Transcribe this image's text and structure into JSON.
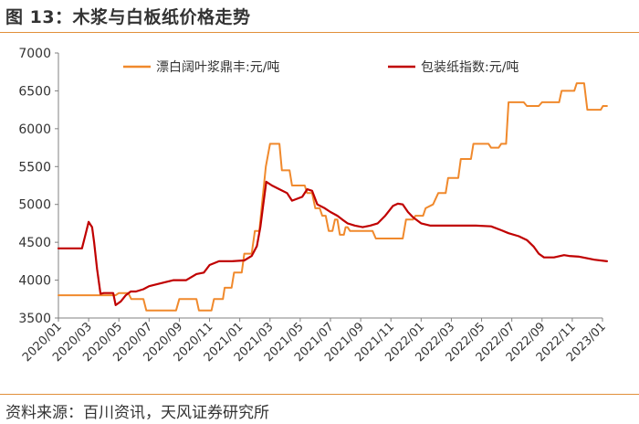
{
  "figure_title": "图 13：木浆与白板纸价格走势",
  "source_note": "资料来源：百川资讯，天风证券研究所",
  "colors": {
    "pulp": "#f0892c",
    "board": "#c00000",
    "accent_rule": "#e1903a",
    "axis": "#808080"
  },
  "chart_data": {
    "type": "line",
    "title": "",
    "xlabel": "",
    "ylabel": "",
    "ylim": [
      3500,
      7000
    ],
    "yticks": [
      3500,
      4000,
      4500,
      5000,
      5500,
      6000,
      6500,
      7000
    ],
    "xrange": [
      "2020-01",
      "2023-01"
    ],
    "xtick_labels": [
      "2020/01",
      "2020/03",
      "2020/05",
      "2020/07",
      "2020/09",
      "2020/11",
      "2021/01",
      "2021/03",
      "2021/05",
      "2021/07",
      "2021/09",
      "2021/11",
      "2022/01",
      "2022/03",
      "2022/05",
      "2022/07",
      "2022/09",
      "2022/11",
      "2023/01"
    ],
    "grid": false,
    "legend_position": "top",
    "series": [
      {
        "name": "漂白阔叶浆鼎丰:元/吨",
        "color": "#f0892c",
        "points": [
          [
            "2020-01-01",
            3800
          ],
          [
            "2020-04-25",
            3800
          ],
          [
            "2020-05-01",
            3830
          ],
          [
            "2020-05-20",
            3830
          ],
          [
            "2020-05-26",
            3750
          ],
          [
            "2020-06-20",
            3750
          ],
          [
            "2020-06-26",
            3600
          ],
          [
            "2020-08-25",
            3600
          ],
          [
            "2020-09-01",
            3750
          ],
          [
            "2020-10-05",
            3750
          ],
          [
            "2020-10-10",
            3600
          ],
          [
            "2020-11-05",
            3600
          ],
          [
            "2020-11-10",
            3750
          ],
          [
            "2020-11-28",
            3750
          ],
          [
            "2020-12-01",
            3900
          ],
          [
            "2020-12-15",
            3900
          ],
          [
            "2020-12-20",
            4100
          ],
          [
            "2021-01-05",
            4100
          ],
          [
            "2021-01-10",
            4350
          ],
          [
            "2021-01-25",
            4350
          ],
          [
            "2021-02-01",
            4650
          ],
          [
            "2021-02-10",
            4650
          ],
          [
            "2021-02-16",
            5050
          ],
          [
            "2021-02-23",
            5500
          ],
          [
            "2021-03-01",
            5800
          ],
          [
            "2021-03-20",
            5800
          ],
          [
            "2021-03-25",
            5450
          ],
          [
            "2021-04-10",
            5450
          ],
          [
            "2021-04-15",
            5250
          ],
          [
            "2021-05-10",
            5250
          ],
          [
            "2021-05-15",
            5150
          ],
          [
            "2021-05-25",
            5150
          ],
          [
            "2021-06-01",
            4950
          ],
          [
            "2021-06-10",
            4950
          ],
          [
            "2021-06-15",
            4850
          ],
          [
            "2021-06-22",
            4850
          ],
          [
            "2021-06-28",
            4650
          ],
          [
            "2021-07-05",
            4650
          ],
          [
            "2021-07-10",
            4800
          ],
          [
            "2021-07-15",
            4800
          ],
          [
            "2021-07-20",
            4600
          ],
          [
            "2021-07-28",
            4600
          ],
          [
            "2021-08-01",
            4700
          ],
          [
            "2021-08-05",
            4700
          ],
          [
            "2021-08-10",
            4650
          ],
          [
            "2021-09-25",
            4650
          ],
          [
            "2021-10-01",
            4550
          ],
          [
            "2021-11-25",
            4550
          ],
          [
            "2021-12-01",
            4800
          ],
          [
            "2021-12-15",
            4800
          ],
          [
            "2021-12-20",
            4850
          ],
          [
            "2022-01-05",
            4850
          ],
          [
            "2022-01-10",
            4950
          ],
          [
            "2022-01-25",
            5000
          ],
          [
            "2022-02-05",
            5150
          ],
          [
            "2022-02-20",
            5150
          ],
          [
            "2022-02-25",
            5350
          ],
          [
            "2022-03-15",
            5350
          ],
          [
            "2022-03-20",
            5600
          ],
          [
            "2022-04-10",
            5600
          ],
          [
            "2022-04-15",
            5800
          ],
          [
            "2022-05-15",
            5800
          ],
          [
            "2022-05-20",
            5750
          ],
          [
            "2022-06-05",
            5750
          ],
          [
            "2022-06-10",
            5800
          ],
          [
            "2022-06-20",
            5800
          ],
          [
            "2022-06-25",
            6350
          ],
          [
            "2022-07-25",
            6350
          ],
          [
            "2022-08-01",
            6300
          ],
          [
            "2022-08-25",
            6300
          ],
          [
            "2022-09-01",
            6350
          ],
          [
            "2022-10-05",
            6350
          ],
          [
            "2022-10-10",
            6500
          ],
          [
            "2022-11-05",
            6500
          ],
          [
            "2022-11-10",
            6600
          ],
          [
            "2022-11-25",
            6600
          ],
          [
            "2022-12-01",
            6250
          ],
          [
            "2022-12-28",
            6250
          ],
          [
            "2023-01-02",
            6300
          ],
          [
            "2023-01-10",
            6300
          ]
        ]
      },
      {
        "name": "包装纸指数:元/吨",
        "color": "#c00000",
        "points": [
          [
            "2020-01-01",
            4420
          ],
          [
            "2020-02-18",
            4420
          ],
          [
            "2020-02-25",
            4600
          ],
          [
            "2020-03-01",
            4770
          ],
          [
            "2020-03-08",
            4700
          ],
          [
            "2020-03-12",
            4500
          ],
          [
            "2020-03-18",
            4150
          ],
          [
            "2020-03-25",
            3820
          ],
          [
            "2020-04-01",
            3830
          ],
          [
            "2020-04-20",
            3830
          ],
          [
            "2020-04-25",
            3670
          ],
          [
            "2020-05-05",
            3720
          ],
          [
            "2020-05-15",
            3800
          ],
          [
            "2020-05-25",
            3850
          ],
          [
            "2020-06-05",
            3850
          ],
          [
            "2020-06-20",
            3880
          ],
          [
            "2020-07-01",
            3920
          ],
          [
            "2020-08-01",
            3970
          ],
          [
            "2020-08-20",
            4000
          ],
          [
            "2020-09-15",
            4000
          ],
          [
            "2020-10-05",
            4080
          ],
          [
            "2020-10-20",
            4100
          ],
          [
            "2020-11-01",
            4200
          ],
          [
            "2020-11-20",
            4250
          ],
          [
            "2020-12-15",
            4250
          ],
          [
            "2021-01-10",
            4260
          ],
          [
            "2021-01-25",
            4320
          ],
          [
            "2021-02-05",
            4450
          ],
          [
            "2021-02-12",
            4700
          ],
          [
            "2021-02-18",
            5000
          ],
          [
            "2021-02-24",
            5300
          ],
          [
            "2021-03-05",
            5250
          ],
          [
            "2021-03-20",
            5200
          ],
          [
            "2021-04-05",
            5150
          ],
          [
            "2021-04-15",
            5050
          ],
          [
            "2021-05-05",
            5100
          ],
          [
            "2021-05-15",
            5200
          ],
          [
            "2021-05-25",
            5180
          ],
          [
            "2021-06-05",
            5000
          ],
          [
            "2021-06-20",
            4950
          ],
          [
            "2021-07-01",
            4900
          ],
          [
            "2021-07-15",
            4850
          ],
          [
            "2021-07-25",
            4800
          ],
          [
            "2021-08-05",
            4750
          ],
          [
            "2021-08-20",
            4720
          ],
          [
            "2021-09-05",
            4700
          ],
          [
            "2021-09-20",
            4720
          ],
          [
            "2021-10-05",
            4750
          ],
          [
            "2021-10-20",
            4850
          ],
          [
            "2021-11-05",
            4980
          ],
          [
            "2021-11-15",
            5010
          ],
          [
            "2021-11-25",
            5000
          ],
          [
            "2021-12-05",
            4900
          ],
          [
            "2021-12-15",
            4830
          ],
          [
            "2022-01-01",
            4750
          ],
          [
            "2022-01-20",
            4720
          ],
          [
            "2022-02-20",
            4720
          ],
          [
            "2022-03-20",
            4720
          ],
          [
            "2022-04-20",
            4720
          ],
          [
            "2022-05-20",
            4710
          ],
          [
            "2022-06-10",
            4660
          ],
          [
            "2022-06-25",
            4620
          ],
          [
            "2022-07-15",
            4580
          ],
          [
            "2022-08-01",
            4530
          ],
          [
            "2022-08-15",
            4440
          ],
          [
            "2022-08-25",
            4350
          ],
          [
            "2022-09-05",
            4300
          ],
          [
            "2022-09-25",
            4300
          ],
          [
            "2022-10-15",
            4330
          ],
          [
            "2022-10-25",
            4320
          ],
          [
            "2022-11-15",
            4310
          ],
          [
            "2022-12-15",
            4270
          ],
          [
            "2023-01-10",
            4250
          ]
        ]
      }
    ]
  }
}
